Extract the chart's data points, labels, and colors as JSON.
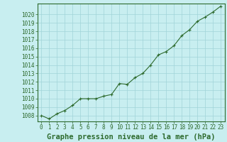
{
  "x": [
    0,
    1,
    2,
    3,
    4,
    5,
    6,
    7,
    8,
    9,
    10,
    11,
    12,
    13,
    14,
    15,
    16,
    17,
    18,
    19,
    20,
    21,
    22,
    23
  ],
  "y": [
    1008.0,
    1007.6,
    1008.2,
    1008.6,
    1009.2,
    1010.0,
    1010.0,
    1010.0,
    1010.3,
    1010.5,
    1011.8,
    1011.7,
    1012.5,
    1013.0,
    1014.0,
    1015.2,
    1015.6,
    1016.3,
    1017.5,
    1018.2,
    1019.2,
    1019.7,
    1020.3,
    1021.0
  ],
  "xlim": [
    -0.5,
    23.5
  ],
  "ylim": [
    1007.3,
    1021.3
  ],
  "yticks": [
    1008,
    1009,
    1010,
    1011,
    1012,
    1013,
    1014,
    1015,
    1016,
    1017,
    1018,
    1019,
    1020
  ],
  "xticks": [
    0,
    1,
    2,
    3,
    4,
    5,
    6,
    7,
    8,
    9,
    10,
    11,
    12,
    13,
    14,
    15,
    16,
    17,
    18,
    19,
    20,
    21,
    22,
    23
  ],
  "line_color": "#2d6a2d",
  "marker_color": "#2d6a2d",
  "bg_color": "#c8eef0",
  "grid_color": "#a0d4d8",
  "border_color": "#2d6a2d",
  "xlabel": "Graphe pression niveau de la mer (hPa)",
  "xlabel_color": "#2d6a2d",
  "tick_color": "#2d6a2d",
  "tick_fontsize": 5.5,
  "xlabel_fontsize": 7.5
}
